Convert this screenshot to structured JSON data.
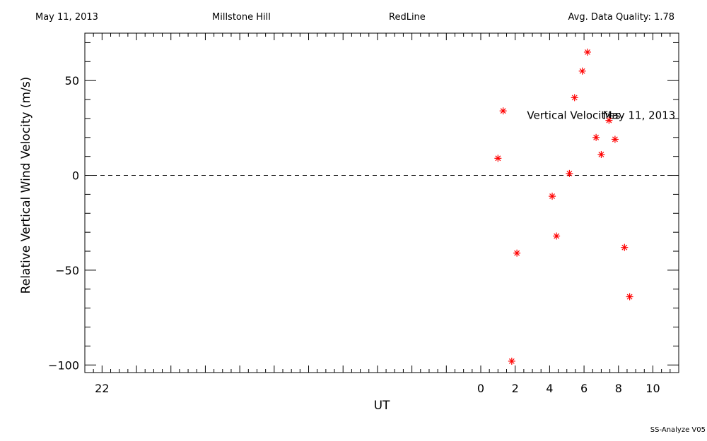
{
  "header": {
    "date": "May 11, 2013",
    "site": "Millstone Hill",
    "instrument": "RedLine",
    "quality": "Avg. Data Quality: 1.78"
  },
  "footer": {
    "version": "SS-Analyze V05"
  },
  "chart_data": {
    "type": "scatter",
    "xlabel": "UT",
    "ylabel": "Relative Vertical Wind Velocity (m/s)",
    "xlim": [
      -23,
      11.5
    ],
    "ylim": [
      -104,
      75
    ],
    "x_ticks": [
      -22,
      0,
      2,
      4,
      6,
      8,
      10
    ],
    "x_tick_labels": [
      "22",
      "0",
      "2",
      "4",
      "6",
      "8",
      "10"
    ],
    "y_ticks": [
      -100,
      -50,
      0,
      50
    ],
    "y_tick_labels": [
      "−100",
      "−50",
      "0",
      "50"
    ],
    "zero_line": true,
    "marker_color": "#ff0000",
    "annotations": [
      {
        "text": "Vertical Velocities",
        "x": 5.4,
        "y": 32
      },
      {
        "text": "May 11, 2013",
        "x": 9.2,
        "y": 32
      }
    ],
    "series": [
      {
        "points": [
          [
            1.0,
            9
          ],
          [
            1.3,
            34
          ],
          [
            1.8,
            -98
          ],
          [
            2.1,
            -41
          ],
          [
            4.15,
            -11
          ],
          [
            4.4,
            -32
          ],
          [
            5.15,
            1
          ],
          [
            5.45,
            41
          ],
          [
            5.9,
            55
          ],
          [
            6.2,
            65
          ],
          [
            6.7,
            20
          ],
          [
            7.0,
            11
          ],
          [
            7.45,
            29
          ],
          [
            7.8,
            19
          ],
          [
            8.35,
            -38
          ],
          [
            8.65,
            -64
          ]
        ]
      }
    ]
  }
}
